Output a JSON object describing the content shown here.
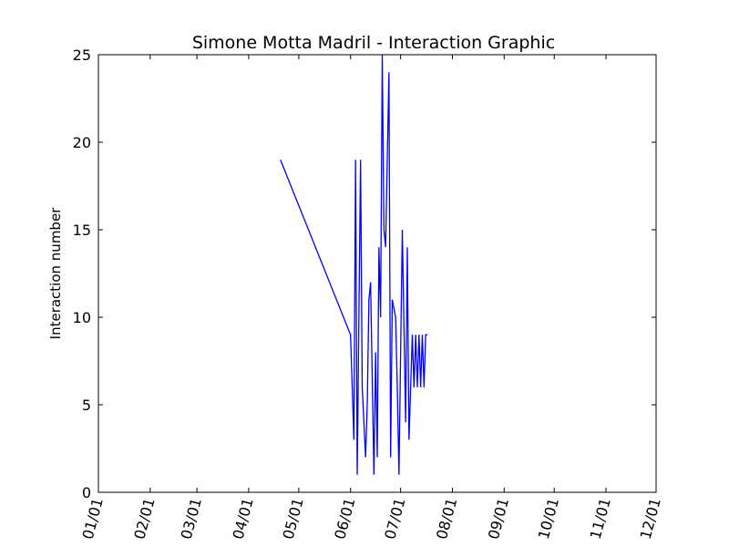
{
  "chart_data": {
    "type": "line",
    "title": "Simone Motta Madril - Interaction Graphic",
    "xlabel": "",
    "ylabel": "Interaction number",
    "xlim": [
      "01/01",
      "12/01"
    ],
    "ylim": [
      0,
      25
    ],
    "x_ticks": [
      "01/01",
      "02/01",
      "03/01",
      "04/01",
      "05/01",
      "06/01",
      "07/01",
      "08/01",
      "09/01",
      "10/01",
      "11/01",
      "12/01"
    ],
    "y_ticks": [
      "0",
      "5",
      "10",
      "15",
      "20",
      "25"
    ],
    "grid": false,
    "colors": {
      "series": "#0000ff",
      "axes": "#000000"
    },
    "series": [
      {
        "x": [
          "04/20",
          "06/01",
          "06/03",
          "06/04",
          "06/05",
          "06/07",
          "06/08",
          "06/10",
          "06/11",
          "06/12",
          "06/13",
          "06/15",
          "06/16",
          "06/17",
          "06/18",
          "06/19",
          "06/20",
          "06/21",
          "06/22",
          "06/24",
          "06/25",
          "06/26",
          "06/28",
          "06/29",
          "06/30",
          "07/02",
          "07/04",
          "07/05",
          "07/06",
          "07/08",
          "07/09",
          "07/10",
          "07/11",
          "07/12",
          "07/13",
          "07/14",
          "07/15",
          "07/16",
          "07/17"
        ],
        "y": [
          19,
          9,
          3,
          19,
          1,
          19,
          6,
          2,
          5,
          11,
          12,
          1,
          8,
          2,
          14,
          10,
          25,
          15,
          14,
          24,
          2,
          11,
          10,
          6,
          1,
          15,
          4,
          14,
          3,
          9,
          6,
          9,
          6,
          9,
          6,
          9,
          6,
          9,
          9
        ]
      }
    ]
  }
}
